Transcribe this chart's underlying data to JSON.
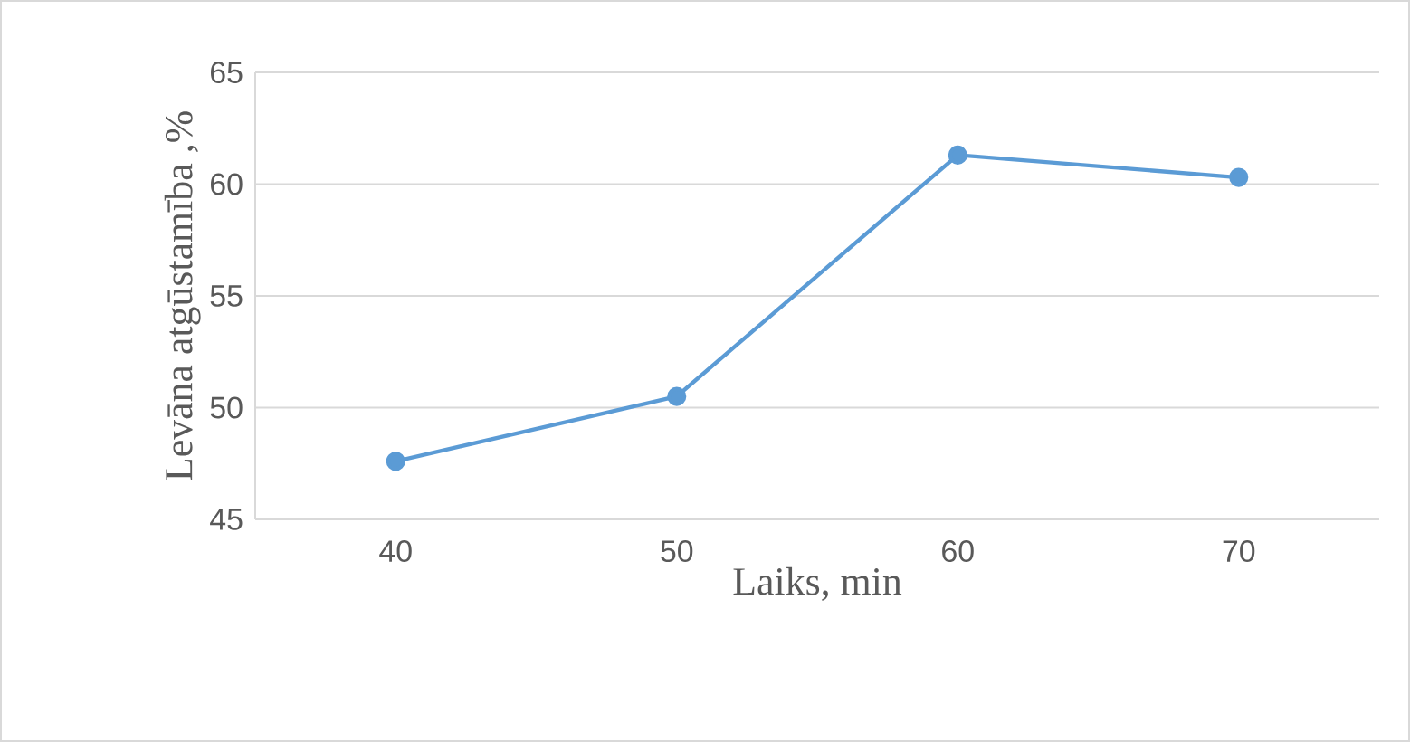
{
  "chart_data": {
    "type": "line",
    "xlabel": "Laiks, min",
    "ylabel": "Levāna atgūstamība ,%",
    "categories": [
      "40",
      "50",
      "60",
      "70"
    ],
    "series": [
      {
        "color": "#5b9bd5",
        "values": [
          47.6,
          50.5,
          61.3,
          60.3
        ]
      }
    ],
    "ylim": [
      45,
      65
    ],
    "yticks": [
      45,
      50,
      55,
      60,
      65
    ],
    "grid": "y",
    "marker": "circle",
    "line_style": "solid"
  }
}
